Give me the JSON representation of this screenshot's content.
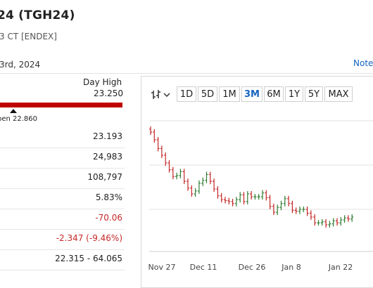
{
  "header": {
    "title": "24 (TGH24)",
    "subtitle": "3 CT [ENDEX]",
    "date": "3rd, 2024",
    "notes_link": "Note"
  },
  "day_range": {
    "label": "Day High",
    "high": "23.250",
    "open_label": "pen 22.860",
    "open_position_fraction": 0.12
  },
  "stats": [
    {
      "value": "23.193",
      "negative": false
    },
    {
      "value": "24,983",
      "negative": false
    },
    {
      "value": "108,797",
      "negative": false
    },
    {
      "value": "5.83%",
      "negative": false
    },
    {
      "value": "-70.06",
      "negative": true
    },
    {
      "value": "-2.347 (-9.46%)",
      "negative": true
    },
    {
      "value": "22.315 - 64.065",
      "negative": false
    }
  ],
  "chart": {
    "toolbar_icon": "candlestick-chart-icon",
    "chevron_icon": "chevron-down-icon",
    "ranges": [
      "1D",
      "5D",
      "1M",
      "3M",
      "6M",
      "1Y",
      "5Y",
      "MAX"
    ],
    "active_range": "3M",
    "up_color": "#2e7d32",
    "down_color": "#c62828"
  },
  "chart_data": {
    "type": "ohlc",
    "x_tick_labels": [
      "Nov 27",
      "Dec 11",
      "Dec 26",
      "Jan 8",
      "Jan 22"
    ],
    "grid": true,
    "series": [
      {
        "values": [
          10,
          9.2,
          8.3,
          7.6,
          6.8,
          6.1,
          5.4,
          5.5,
          5.9,
          4.9,
          4.2,
          3.6,
          3.9,
          4.7,
          5.0,
          5.6,
          4.9,
          4.1,
          3.4,
          3.0,
          2.9,
          2.8,
          2.6,
          3.0,
          3.5,
          2.8,
          3.6,
          3.3,
          3.3,
          3.3,
          3.7,
          3.2,
          2.3,
          1.7,
          2.2,
          2.6,
          3.1,
          2.6,
          1.9,
          1.8,
          2.0,
          2.0,
          1.6,
          1.2,
          0.6,
          0.6,
          0.7,
          0.4,
          0.5,
          0.8,
          0.6,
          0.9,
          1.1,
          1.0,
          1.2
        ]
      }
    ]
  }
}
